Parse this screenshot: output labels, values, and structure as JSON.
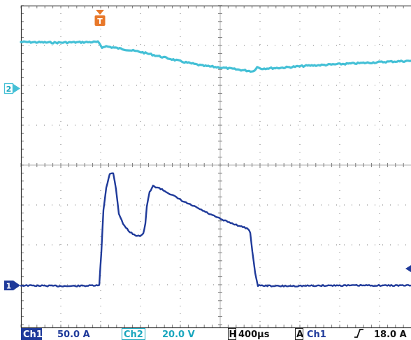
{
  "trigger": {
    "label": "T",
    "color": "#e8782a"
  },
  "channels": [
    {
      "id": "ch2",
      "marker_label": "2",
      "color": "#44c0d6"
    },
    {
      "id": "ch1",
      "marker_label": "1",
      "color": "#1f3a9a"
    }
  ],
  "trigger_level_arrow": {
    "icon": "arrow-left-icon",
    "color": "#1f3a9a"
  },
  "footer": {
    "ch1_label": "Ch1",
    "ch1_scale": "50.0 A",
    "ch2_label": "Ch2",
    "ch2_scale": "20.0 V",
    "horizontal_label": "H",
    "horizontal_scale": "400µs",
    "acq_label": "A",
    "trigger_source": "Ch1",
    "trigger_slope_icon": "rising-edge-icon",
    "trigger_level": "18.0 A",
    "ch1_badge_color": "#1f3a9a",
    "ch2_text_color": "#19a6bd"
  },
  "colors": {
    "grid": "#7a7a7a",
    "background": "#ffffff",
    "border": "#333333"
  }
}
